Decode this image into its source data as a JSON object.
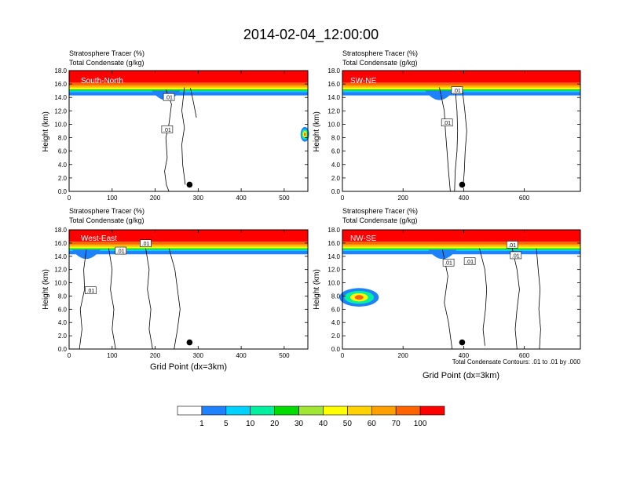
{
  "figure": {
    "title": "2014-02-04_12:00:00",
    "footnote": "Total Condensate Contours: .01 to .01 by .000"
  },
  "colorbar": {
    "labels": [
      "1",
      "5",
      "10",
      "20",
      "30",
      "40",
      "50",
      "60",
      "70",
      "100"
    ],
    "colors": [
      "#ffffff",
      "#1e82ff",
      "#00d2ff",
      "#00f0a0",
      "#00dc00",
      "#a0e632",
      "#ffff00",
      "#ffd200",
      "#ffa000",
      "#ff6400",
      "#ff0000"
    ]
  },
  "chart_data": [
    {
      "type": "heatmap",
      "panel_label": "South-North",
      "subtitle_1": "Stratosphere Tracer   (%)",
      "subtitle_2": "Total Condensate   (g/kg)",
      "ylabel": "Height (km)",
      "xlabel": "",
      "xlim": [
        0,
        555
      ],
      "ylim": [
        0,
        18
      ],
      "xticks": [
        "0",
        "100",
        "200",
        "300",
        "400",
        "500"
      ],
      "yticks": [
        "0.0",
        "2.0",
        "4.0",
        "6.0",
        "8.0",
        "10.0",
        "12.0",
        "14.0",
        "16.0",
        "18.0"
      ],
      "contour_labels": [
        ".01",
        ".01"
      ],
      "marker_x": 280,
      "marker_y": 1.0
    },
    {
      "type": "heatmap",
      "panel_label": "SW-NE",
      "subtitle_1": "Stratosphere Tracer   (%)",
      "subtitle_2": "Total Condensate   (g/kg)",
      "ylabel": "Height (km)",
      "xlabel": "",
      "xlim": [
        0,
        785
      ],
      "ylim": [
        0,
        18
      ],
      "xticks": [
        "0",
        "200",
        "400",
        "600"
      ],
      "yticks": [
        "0.0",
        "2.0",
        "4.0",
        "6.0",
        "8.0",
        "10.0",
        "12.0",
        "14.0",
        "16.0",
        "18.0"
      ],
      "contour_labels": [
        ".01",
        ".01"
      ],
      "marker_x": 395,
      "marker_y": 1.0
    },
    {
      "type": "heatmap",
      "panel_label": "West-East",
      "subtitle_1": "Stratosphere Tracer   (%)",
      "subtitle_2": "Total Condensate   (g/kg)",
      "ylabel": "Height (km)",
      "xlabel": "Grid Point (dx=3km)",
      "xlim": [
        0,
        555
      ],
      "ylim": [
        0,
        18
      ],
      "xticks": [
        "0",
        "100",
        "200",
        "300",
        "400",
        "500"
      ],
      "yticks": [
        "0.0",
        "2.0",
        "4.0",
        "6.0",
        "8.0",
        "10.0",
        "12.0",
        "14.0",
        "16.0",
        "18.0"
      ],
      "contour_labels": [
        ".01",
        ".01",
        ".01"
      ],
      "marker_x": 280,
      "marker_y": 1.0
    },
    {
      "type": "heatmap",
      "panel_label": "NW-SE",
      "subtitle_1": "Stratosphere Tracer   (%)",
      "subtitle_2": "Total Condensate   (g/kg)",
      "ylabel": "Height (km)",
      "xlabel": "Grid Point (dx=3km)",
      "xlim": [
        0,
        785
      ],
      "ylim": [
        0,
        18
      ],
      "xticks": [
        "0",
        "200",
        "400",
        "600"
      ],
      "yticks": [
        "0.0",
        "2.0",
        "4.0",
        "6.0",
        "8.0",
        "10.0",
        "12.0",
        "14.0",
        "16.0",
        "18.0"
      ],
      "contour_labels": [
        ".01",
        ".01",
        ".01",
        ".01"
      ],
      "marker_x": 395,
      "marker_y": 1.0
    }
  ]
}
